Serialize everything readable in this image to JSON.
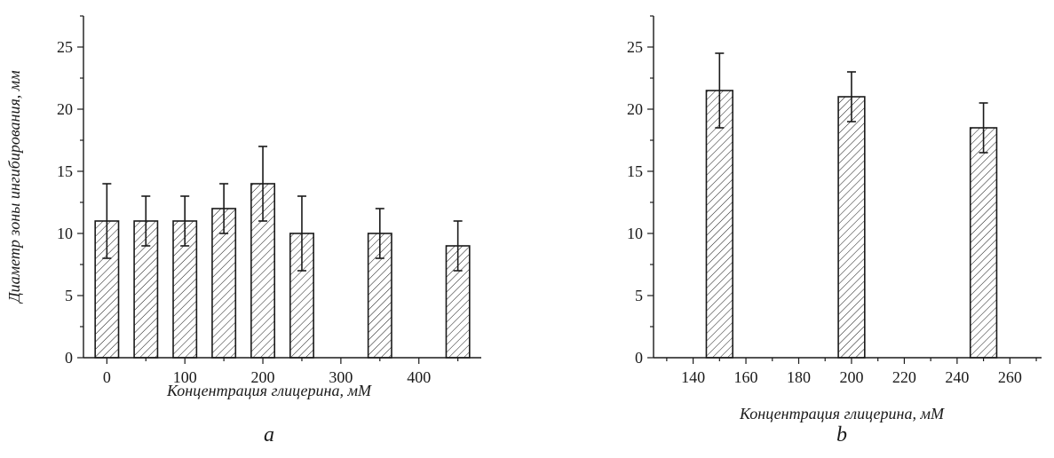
{
  "chart_data": [
    {
      "type": "bar",
      "panel": "a",
      "xlabel": "Концентрация глицерина, мМ",
      "ylabel": "Диаметр зоны ингибирования, мм",
      "xlim": [
        -30,
        480
      ],
      "ylim": [
        0,
        27.5
      ],
      "xticks": [
        0,
        100,
        200,
        300,
        400
      ],
      "yticks": [
        0,
        5,
        10,
        15,
        20,
        25
      ],
      "bar_width": 30,
      "x": [
        0,
        50,
        100,
        150,
        200,
        250,
        350,
        450
      ],
      "values": [
        11,
        11,
        11,
        12,
        14,
        10,
        10,
        9
      ],
      "errors": [
        3,
        2,
        2,
        2,
        3,
        3,
        2,
        2
      ],
      "fill": "hatched",
      "grid": false
    },
    {
      "type": "bar",
      "panel": "b",
      "xlabel": "Концентрация глицерина, мМ",
      "ylabel": "",
      "xlim": [
        125,
        272
      ],
      "ylim": [
        0,
        27.5
      ],
      "xticks": [
        140,
        160,
        180,
        200,
        220,
        240,
        260
      ],
      "yticks": [
        0,
        5,
        10,
        15,
        20,
        25
      ],
      "bar_width": 10,
      "x": [
        150,
        200,
        250
      ],
      "values": [
        21.5,
        21,
        18.5
      ],
      "errors": [
        3,
        2,
        2
      ],
      "fill": "hatched",
      "grid": false
    }
  ],
  "colors": {
    "ink": "#1a1a1a",
    "background": "#ffffff"
  }
}
